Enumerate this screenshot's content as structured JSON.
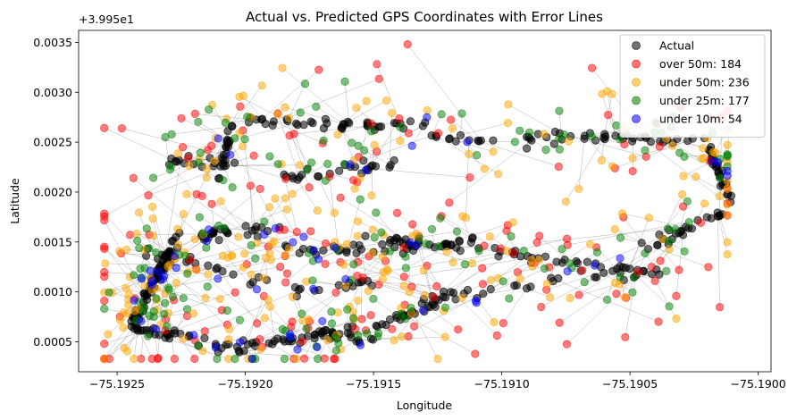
{
  "chart_data": {
    "type": "scatter",
    "title": "Actual vs. Predicted GPS Coordinates with Error Lines",
    "xlabel": "Longitude",
    "ylabel": "Latitude",
    "y_offset_label": "+3.995e1",
    "xlim": [
      -75.19265,
      -75.18995
    ],
    "ylim": [
      0.0002,
      0.00362
    ],
    "xticks": [
      -75.1925,
      -75.192,
      -75.1915,
      -75.191,
      -75.1905,
      -75.19
    ],
    "xtick_labels": [
      "−75.1925",
      "−75.1920",
      "−75.1915",
      "−75.1910",
      "−75.1905",
      "−75.1900"
    ],
    "yticks": [
      0.0005,
      0.001,
      0.0015,
      0.002,
      0.0025,
      0.003,
      0.0035
    ],
    "ytick_labels": [
      "0.0005",
      "0.0010",
      "0.0015",
      "0.0020",
      "0.0025",
      "0.0030",
      "0.0035"
    ],
    "legend_position": "upper right",
    "error_line_color": "#808080",
    "series": [
      {
        "name": "Actual",
        "color": "#000000",
        "count": 600
      },
      {
        "name": "over 50m: 184",
        "color": "#ff0000",
        "count": 184
      },
      {
        "name": "under 50m: 236",
        "color": "#ffa500",
        "count": 236
      },
      {
        "name": "under 25m: 177",
        "color": "#008000",
        "count": 177
      },
      {
        "name": "under 10m: 54",
        "color": "#0000ff",
        "count": 54
      }
    ]
  }
}
